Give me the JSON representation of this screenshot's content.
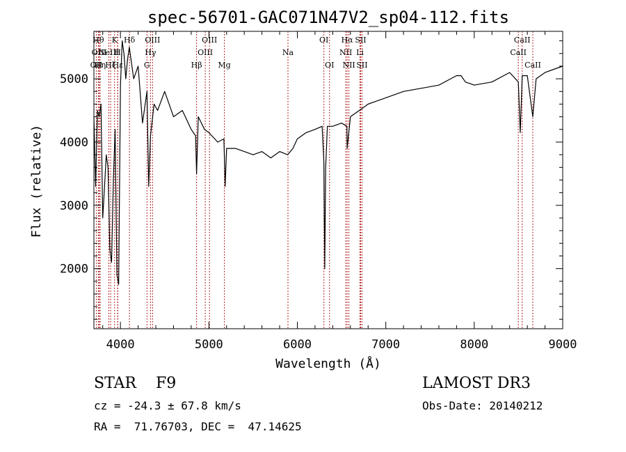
{
  "chart_data": {
    "type": "line",
    "title": "spec-56701-GAC071N47V2_sp04-112.fits",
    "xlabel": "Wavelength (Å)",
    "ylabel": "Flux (relative)",
    "xlim": [
      3700,
      9000
    ],
    "ylim": [
      1050,
      5750
    ],
    "xticks": [
      4000,
      5000,
      6000,
      7000,
      8000,
      9000
    ],
    "yticks": [
      2000,
      3000,
      4000,
      5000
    ],
    "grid": false,
    "series": [
      {
        "x": [
          3700,
          3720,
          3740,
          3760,
          3780,
          3800,
          3820,
          3840,
          3860,
          3880,
          3900,
          3920,
          3940,
          3960,
          3980,
          4000,
          4020,
          4040,
          4060,
          4080,
          4100,
          4150,
          4200,
          4250,
          4300,
          4320,
          4340,
          4380,
          4420,
          4500,
          4600,
          4700,
          4800,
          4850,
          4861,
          4880,
          4950,
          5000,
          5100,
          5170,
          5184,
          5200,
          5300,
          5400,
          5500,
          5600,
          5700,
          5800,
          5890,
          5950,
          6000,
          6100,
          6200,
          6280,
          6300,
          6310,
          6320,
          6340,
          6400,
          6500,
          6560,
          6563,
          6600,
          6700,
          6800,
          6900,
          7000,
          7200,
          7400,
          7600,
          7800,
          7850,
          7900,
          8000,
          8200,
          8400,
          8498,
          8520,
          8542,
          8600,
          8662,
          8700,
          8800,
          8900,
          9000
        ],
        "y": [
          4400,
          3300,
          4500,
          4400,
          4600,
          2800,
          3300,
          3800,
          3600,
          2300,
          2100,
          3400,
          4200,
          1900,
          1750,
          4900,
          5600,
          5400,
          5000,
          5300,
          5500,
          5000,
          5200,
          4300,
          4800,
          3300,
          4100,
          4600,
          4500,
          4800,
          4400,
          4500,
          4200,
          4100,
          3500,
          4400,
          4200,
          4150,
          4000,
          4050,
          3300,
          3900,
          3900,
          3850,
          3800,
          3850,
          3750,
          3850,
          3800,
          3900,
          4050,
          4150,
          4200,
          4250,
          3700,
          2000,
          3600,
          4250,
          4250,
          4300,
          4250,
          3900,
          4400,
          4500,
          4600,
          4650,
          4700,
          4800,
          4850,
          4900,
          5050,
          5050,
          4950,
          4900,
          4950,
          5100,
          4950,
          4150,
          5050,
          5050,
          4400,
          5000,
          5100,
          5150,
          5200
        ]
      }
    ],
    "lines": [
      {
        "x": 3727,
        "label": "OII",
        "row": 2
      },
      {
        "x": 3750,
        "label": "Hθ",
        "row": 0
      },
      {
        "x": 3760,
        "label": "OIII",
        "row": 1
      },
      {
        "x": 3771,
        "label": "Hη",
        "row": 2
      },
      {
        "x": 3869,
        "label": "NeIII",
        "row": 1
      },
      {
        "x": 3889,
        "label": "Hζ",
        "row": 2
      },
      {
        "x": 3934,
        "label": "K",
        "row": 0
      },
      {
        "x": 3968,
        "label": "H",
        "row": 1
      },
      {
        "x": 3970,
        "label": "Hε",
        "row": 2
      },
      {
        "x": 4102,
        "label": "Hδ",
        "row": 0
      },
      {
        "x": 4300,
        "label": "G",
        "row": 2
      },
      {
        "x": 4340,
        "label": "Hγ",
        "row": 1
      },
      {
        "x": 4363,
        "label": "OIII",
        "row": 0
      },
      {
        "x": 4861,
        "label": "Hβ",
        "row": 2
      },
      {
        "x": 4959,
        "label": "OIII",
        "row": 1
      },
      {
        "x": 5007,
        "label": "OIII",
        "row": 0
      },
      {
        "x": 5175,
        "label": "Mg",
        "row": 2
      },
      {
        "x": 5894,
        "label": "Na",
        "row": 1
      },
      {
        "x": 6300,
        "label": "OI",
        "row": 0
      },
      {
        "x": 6364,
        "label": "OI",
        "row": 2
      },
      {
        "x": 6548,
        "label": "NII",
        "row": 1
      },
      {
        "x": 6563,
        "label": "Hα",
        "row": 0
      },
      {
        "x": 6583,
        "label": "NII",
        "row": 2
      },
      {
        "x": 6708,
        "label": "Li",
        "row": 1
      },
      {
        "x": 6716,
        "label": "SII",
        "row": 0
      },
      {
        "x": 6731,
        "label": "SII",
        "row": 2
      },
      {
        "x": 8498,
        "label": "CaII",
        "row": 1
      },
      {
        "x": 8542,
        "label": "CaII",
        "row": 0
      },
      {
        "x": 8662,
        "label": "CaII",
        "row": 2
      }
    ]
  },
  "info": {
    "class_text": "STAR    F9",
    "survey": "LAMOST DR3",
    "cz": "cz = -24.3 ± 67.8 km/s",
    "obs_date": "Obs-Date: 20140212",
    "coords": "RA =  71.76703, DEC =  47.14625"
  },
  "colors": {
    "spectrum": "#000000",
    "marker_lines": "#b22222"
  }
}
